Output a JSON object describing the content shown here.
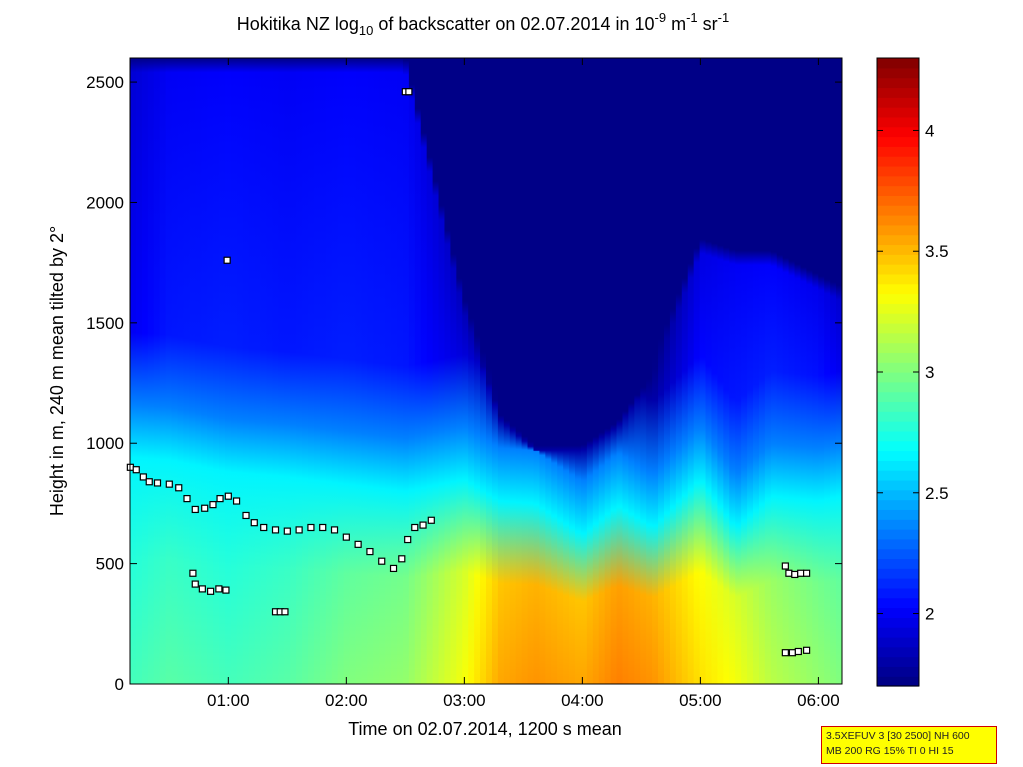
{
  "chart_data": {
    "type": "heatmap",
    "title": {
      "pre": "Hokitika NZ log",
      "sub": "10",
      "mid": " of backscatter on 02.07.2014 in 10",
      "sup1": "-9",
      "mid2": " m",
      "sup2": "-1",
      "mid3": " sr",
      "sup3": "-1"
    },
    "xlabel": "Time on 02.07.2014, 1200 s mean",
    "ylabel": "Height in m, 240 m mean tilted by 2°",
    "x_unit": "hours",
    "xlim": [
      0.167,
      6.2
    ],
    "ylim": [
      0,
      2600
    ],
    "x_ticks": [
      {
        "value": 1,
        "label": "01:00"
      },
      {
        "value": 2,
        "label": "02:00"
      },
      {
        "value": 3,
        "label": "03:00"
      },
      {
        "value": 4,
        "label": "04:00"
      },
      {
        "value": 5,
        "label": "05:00"
      },
      {
        "value": 6,
        "label": "06:00"
      }
    ],
    "y_ticks": [
      {
        "value": 0,
        "label": "0"
      },
      {
        "value": 500,
        "label": "500"
      },
      {
        "value": 1000,
        "label": "1000"
      },
      {
        "value": 1500,
        "label": "1500"
      },
      {
        "value": 2000,
        "label": "2000"
      },
      {
        "value": 2500,
        "label": "2500"
      }
    ],
    "colorbar": {
      "range": [
        1.7,
        4.3
      ],
      "colormap": "jet",
      "ticks": [
        {
          "value": 2,
          "label": "2"
        },
        {
          "value": 2.5,
          "label": "2.5"
        },
        {
          "value": 3,
          "label": "3"
        },
        {
          "value": 3.5,
          "label": "3.5"
        },
        {
          "value": 4,
          "label": "4"
        }
      ]
    },
    "field": {
      "x": [
        0.2,
        0.5,
        1.0,
        1.5,
        2.0,
        2.5,
        3.0,
        3.3,
        3.6,
        4.0,
        4.3,
        4.6,
        5.0,
        5.3,
        5.6,
        6.0,
        6.2
      ],
      "boundary_height": [
        940,
        930,
        880,
        860,
        830,
        800,
        850,
        760,
        750,
        620,
        740,
        650,
        850,
        650,
        780,
        760,
        780
      ],
      "surface_value": [
        2.85,
        2.9,
        2.85,
        2.9,
        3.0,
        3.05,
        3.3,
        3.55,
        3.6,
        3.55,
        3.65,
        3.6,
        3.4,
        3.3,
        3.15,
        3.05,
        3.0
      ],
      "upper_value": [
        1.92,
        2.0,
        2.02,
        2.0,
        2.02,
        2.0,
        1.85,
        1.72,
        1.72,
        1.72,
        1.72,
        1.72,
        1.95,
        2.0,
        2.02,
        1.98,
        1.9
      ],
      "upper_top": [
        2600,
        2600,
        2600,
        2600,
        2600,
        2600,
        1600,
        1180,
        1050,
        1050,
        1150,
        1350,
        1850,
        1800,
        1800,
        1700,
        1650
      ],
      "above_top_value": 1.72
    },
    "series": [
      {
        "points": [
          {
            "x": 0.17,
            "y": 900
          },
          {
            "x": 0.22,
            "y": 890
          },
          {
            "x": 0.28,
            "y": 860
          },
          {
            "x": 0.33,
            "y": 840
          },
          {
            "x": 0.4,
            "y": 835
          },
          {
            "x": 0.5,
            "y": 830
          },
          {
            "x": 0.58,
            "y": 815
          },
          {
            "x": 0.65,
            "y": 770
          },
          {
            "x": 0.72,
            "y": 725
          },
          {
            "x": 0.8,
            "y": 730
          },
          {
            "x": 0.87,
            "y": 745
          },
          {
            "x": 0.93,
            "y": 770
          },
          {
            "x": 1.0,
            "y": 780
          },
          {
            "x": 1.07,
            "y": 760
          },
          {
            "x": 1.15,
            "y": 700
          },
          {
            "x": 1.22,
            "y": 670
          },
          {
            "x": 1.3,
            "y": 650
          },
          {
            "x": 1.4,
            "y": 640
          },
          {
            "x": 1.5,
            "y": 635
          },
          {
            "x": 1.6,
            "y": 640
          },
          {
            "x": 1.7,
            "y": 650
          },
          {
            "x": 1.8,
            "y": 650
          },
          {
            "x": 1.9,
            "y": 640
          },
          {
            "x": 2.0,
            "y": 610
          },
          {
            "x": 2.1,
            "y": 580
          },
          {
            "x": 2.2,
            "y": 550
          },
          {
            "x": 2.3,
            "y": 510
          },
          {
            "x": 2.4,
            "y": 480
          },
          {
            "x": 2.47,
            "y": 520
          },
          {
            "x": 2.52,
            "y": 600
          },
          {
            "x": 2.58,
            "y": 650
          },
          {
            "x": 2.65,
            "y": 660
          },
          {
            "x": 2.72,
            "y": 680
          }
        ]
      },
      {
        "points": [
          {
            "x": 0.7,
            "y": 460
          },
          {
            "x": 0.72,
            "y": 415
          },
          {
            "x": 0.78,
            "y": 395
          },
          {
            "x": 0.85,
            "y": 385
          },
          {
            "x": 0.92,
            "y": 395
          },
          {
            "x": 0.98,
            "y": 390
          }
        ]
      },
      {
        "points": [
          {
            "x": 1.4,
            "y": 300
          },
          {
            "x": 1.44,
            "y": 300
          },
          {
            "x": 1.48,
            "y": 300
          }
        ]
      },
      {
        "points": [
          {
            "x": 5.72,
            "y": 490
          },
          {
            "x": 5.75,
            "y": 460
          },
          {
            "x": 5.8,
            "y": 455
          },
          {
            "x": 5.85,
            "y": 460
          },
          {
            "x": 5.9,
            "y": 460
          }
        ]
      },
      {
        "points": [
          {
            "x": 5.72,
            "y": 130
          },
          {
            "x": 5.78,
            "y": 130
          },
          {
            "x": 5.83,
            "y": 135
          },
          {
            "x": 5.9,
            "y": 140
          }
        ]
      },
      {
        "points": [
          {
            "x": 0.99,
            "y": 1760
          }
        ]
      },
      {
        "points": [
          {
            "x": 2.5,
            "y": 2460
          },
          {
            "x": 2.53,
            "y": 2460
          }
        ]
      }
    ]
  },
  "info_box": {
    "line1": "3.5XEFUV 3 [30 2500] NH 600",
    "line2": "MB 200 RG 15% TI 0 HI 15",
    "background": "#ffff00",
    "border": "#d00000"
  }
}
